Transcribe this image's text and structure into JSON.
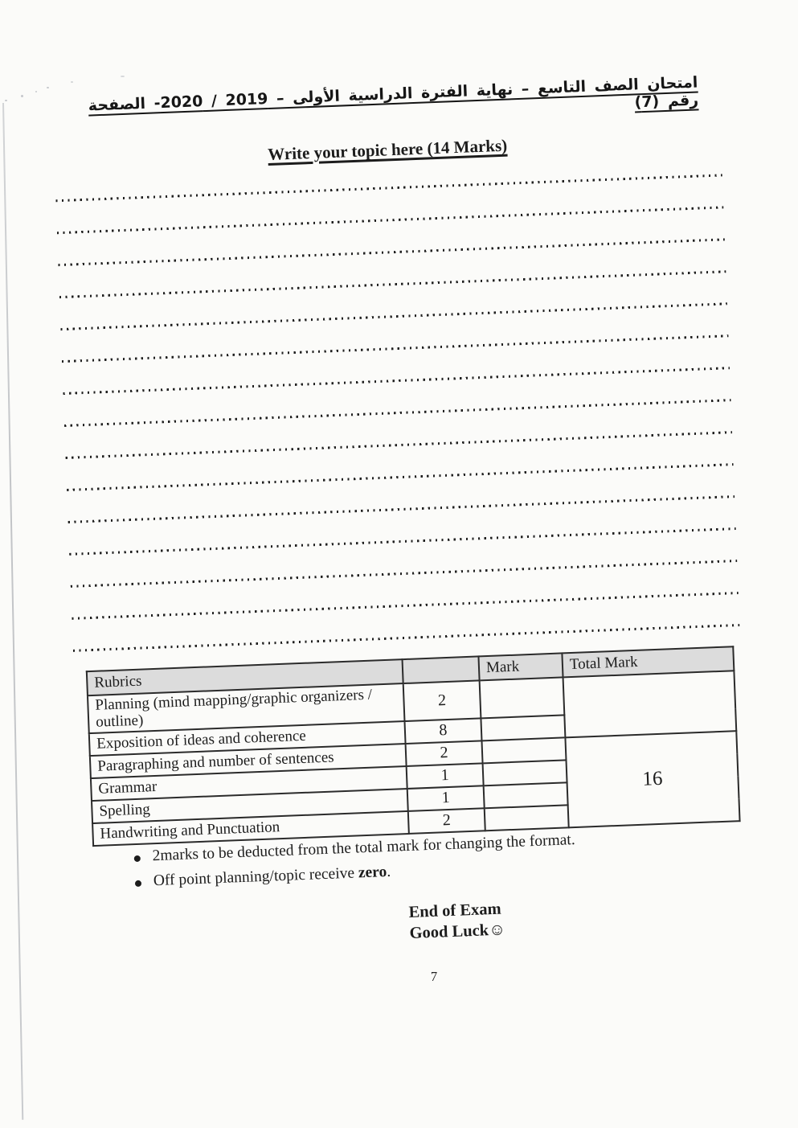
{
  "page": {
    "paper_color": "#fbfbf9",
    "ink_color": "#1c1c1c",
    "table_header_bg": "#dcdcdc"
  },
  "header": {
    "arabic_line": "امتحان الصف التاسع – نهاية الفترة الدراسية الأولى  –  2019 / 2020-  الصفحة رقم (7)"
  },
  "essay": {
    "title": "Write your topic here (14 Marks)",
    "writing_lines_count": 15
  },
  "rubric_table": {
    "header": {
      "rubrics": "Rubrics",
      "criterion_max": "",
      "mark": "Mark",
      "total_mark": "Total Mark"
    },
    "rows": [
      {
        "label": "Planning (mind mapping/graphic organizers / outline)",
        "max": "2",
        "mark": ""
      },
      {
        "label": "Exposition of ideas and coherence",
        "max": "8",
        "mark": ""
      },
      {
        "label": "Paragraphing and number of sentences",
        "max": "2",
        "mark": ""
      },
      {
        "label": "Grammar",
        "max": "1",
        "mark": ""
      },
      {
        "label": "Spelling",
        "max": "1",
        "mark": ""
      },
      {
        "label": "Handwriting and Punctuation",
        "max": "2",
        "mark": ""
      }
    ],
    "total_mark_value": "16"
  },
  "notes": {
    "bullet_1": "2marks to be deducted from the total mark for changing the format.",
    "bullet_2_prefix": "Off point planning/topic receive ",
    "bullet_2_bold": "zero",
    "bullet_2_suffix": "."
  },
  "footer": {
    "end_of_exam": "End of Exam",
    "good_luck": "Good Luck☺",
    "page_number": "7"
  }
}
